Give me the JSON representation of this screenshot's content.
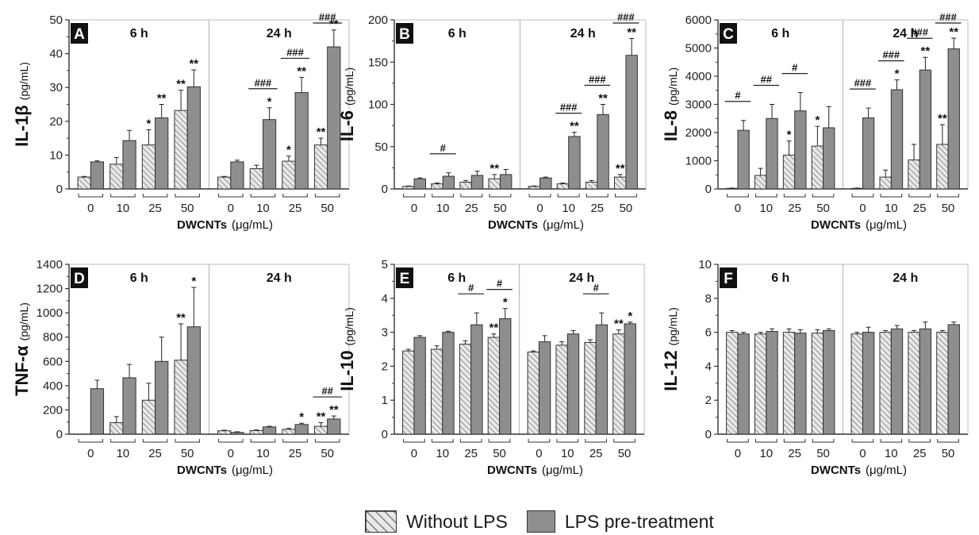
{
  "chart_data": [
    {
      "type": "bar",
      "panel_label": "A",
      "ylabel": "IL-1β",
      "yunit": "(pg/mL)",
      "xlabel": "DWCNTs",
      "xunit": "(μg/mL)",
      "ylim": [
        0,
        50
      ],
      "yticks": [
        0,
        10,
        20,
        30,
        40,
        50
      ],
      "groups": [
        {
          "name": "6 h",
          "categories": [
            "0",
            "10",
            "25",
            "50"
          ],
          "without": [
            {
              "v": 3.5,
              "e": 0.2,
              "s": ""
            },
            {
              "v": 7.3,
              "e": 2,
              "s": ""
            },
            {
              "v": 13,
              "e": 4.5,
              "s": "*"
            },
            {
              "v": 23.2,
              "e": 6,
              "s": "**"
            }
          ],
          "lps": [
            {
              "v": 8,
              "e": 0.3,
              "s": ""
            },
            {
              "v": 14.3,
              "e": 3,
              "s": ""
            },
            {
              "v": 21,
              "e": 4,
              "s": "**"
            },
            {
              "v": 30.2,
              "e": 5,
              "s": "**"
            }
          ]
        },
        {
          "name": "24 h",
          "categories": [
            "0",
            "10",
            "25",
            "50"
          ],
          "without": [
            {
              "v": 3.5,
              "e": 0.2,
              "s": ""
            },
            {
              "v": 6,
              "e": 1,
              "s": ""
            },
            {
              "v": 8.2,
              "e": 1.5,
              "s": "*"
            },
            {
              "v": 13,
              "e": 2,
              "s": "**"
            }
          ],
          "lps": [
            {
              "v": 8,
              "e": 0.5,
              "s": ""
            },
            {
              "v": 20.5,
              "e": 3.5,
              "s": "*"
            },
            {
              "v": 28.5,
              "e": 4.5,
              "s": "**"
            },
            {
              "v": 42,
              "e": 5,
              "s": "**"
            }
          ]
        }
      ],
      "brackets": [
        {
          "g": 1,
          "c": 1,
          "label": "###"
        },
        {
          "g": 1,
          "c": 2,
          "label": "###"
        },
        {
          "g": 1,
          "c": 3,
          "label": "###"
        }
      ]
    },
    {
      "type": "bar",
      "panel_label": "B",
      "ylabel": "IL-6",
      "yunit": "(pg/mL)",
      "xlabel": "DWCNTs",
      "xunit": "(μg/mL)",
      "ylim": [
        0,
        200
      ],
      "yticks": [
        0,
        50,
        100,
        150,
        200
      ],
      "groups": [
        {
          "name": "6 h",
          "categories": [
            "0",
            "10",
            "25",
            "50"
          ],
          "without": [
            {
              "v": 3,
              "e": 0.5,
              "s": ""
            },
            {
              "v": 6,
              "e": 1,
              "s": ""
            },
            {
              "v": 8,
              "e": 2,
              "s": ""
            },
            {
              "v": 12,
              "e": 5,
              "s": "**"
            }
          ],
          "lps": [
            {
              "v": 12,
              "e": 1,
              "s": ""
            },
            {
              "v": 15,
              "e": 4,
              "s": ""
            },
            {
              "v": 16,
              "e": 5,
              "s": ""
            },
            {
              "v": 17,
              "e": 6,
              "s": ""
            }
          ]
        },
        {
          "name": "24 h",
          "categories": [
            "0",
            "10",
            "25",
            "50"
          ],
          "without": [
            {
              "v": 3,
              "e": 0.5,
              "s": ""
            },
            {
              "v": 6,
              "e": 1,
              "s": ""
            },
            {
              "v": 8,
              "e": 2,
              "s": ""
            },
            {
              "v": 14,
              "e": 3,
              "s": "**"
            }
          ],
          "lps": [
            {
              "v": 13,
              "e": 1,
              "s": ""
            },
            {
              "v": 62,
              "e": 5,
              "s": "**"
            },
            {
              "v": 88,
              "e": 12,
              "s": "**"
            },
            {
              "v": 158,
              "e": 20,
              "s": "**"
            }
          ]
        }
      ],
      "brackets": [
        {
          "g": 0,
          "c": 1,
          "label": "#"
        },
        {
          "g": 1,
          "c": 1,
          "label": "###"
        },
        {
          "g": 1,
          "c": 2,
          "label": "###"
        },
        {
          "g": 1,
          "c": 3,
          "label": "###"
        }
      ]
    },
    {
      "type": "bar",
      "panel_label": "C",
      "ylabel": "IL-8",
      "yunit": "(pg/mL)",
      "xlabel": "DWCNTs",
      "xunit": "(μg/mL)",
      "ylim": [
        0,
        6000
      ],
      "yticks": [
        0,
        1000,
        2000,
        3000,
        4000,
        5000,
        6000
      ],
      "groups": [
        {
          "name": "6 h",
          "categories": [
            "0",
            "10",
            "25",
            "50"
          ],
          "without": [
            {
              "v": 20,
              "e": 10,
              "s": ""
            },
            {
              "v": 480,
              "e": 250,
              "s": ""
            },
            {
              "v": 1200,
              "e": 500,
              "s": "*"
            },
            {
              "v": 1520,
              "e": 700,
              "s": "*"
            }
          ],
          "lps": [
            {
              "v": 2080,
              "e": 350,
              "s": ""
            },
            {
              "v": 2500,
              "e": 500,
              "s": ""
            },
            {
              "v": 2770,
              "e": 650,
              "s": ""
            },
            {
              "v": 2170,
              "e": 750,
              "s": ""
            }
          ]
        },
        {
          "name": "24 h",
          "categories": [
            "0",
            "10",
            "25",
            "50"
          ],
          "without": [
            {
              "v": 20,
              "e": 10,
              "s": ""
            },
            {
              "v": 420,
              "e": 250,
              "s": ""
            },
            {
              "v": 1030,
              "e": 550,
              "s": ""
            },
            {
              "v": 1580,
              "e": 700,
              "s": "**"
            }
          ],
          "lps": [
            {
              "v": 2520,
              "e": 350,
              "s": ""
            },
            {
              "v": 3520,
              "e": 350,
              "s": "*"
            },
            {
              "v": 4220,
              "e": 450,
              "s": "**"
            },
            {
              "v": 4970,
              "e": 380,
              "s": "**"
            }
          ]
        }
      ],
      "brackets": [
        {
          "g": 0,
          "c": 0,
          "label": "#"
        },
        {
          "g": 0,
          "c": 1,
          "label": "##"
        },
        {
          "g": 0,
          "c": 2,
          "label": "#"
        },
        {
          "g": 1,
          "c": 0,
          "label": "###"
        },
        {
          "g": 1,
          "c": 1,
          "label": "###"
        },
        {
          "g": 1,
          "c": 2,
          "label": "###"
        },
        {
          "g": 1,
          "c": 3,
          "label": "###"
        }
      ]
    },
    {
      "type": "bar",
      "panel_label": "D",
      "ylabel": "TNF-α",
      "yunit": "(pg/mL)",
      "xlabel": "DWCNTs",
      "xunit": "(μg/mL)",
      "ylim": [
        0,
        1400
      ],
      "yticks": [
        0,
        200,
        400,
        600,
        800,
        1000,
        1200,
        1400
      ],
      "groups": [
        {
          "name": "6 h",
          "categories": [
            "0",
            "10",
            "25",
            "50"
          ],
          "without": [
            {
              "v": 0,
              "e": 0,
              "s": ""
            },
            {
              "v": 95,
              "e": 50,
              "s": ""
            },
            {
              "v": 280,
              "e": 140,
              "s": ""
            },
            {
              "v": 610,
              "e": 300,
              "s": "**"
            }
          ],
          "lps": [
            {
              "v": 375,
              "e": 70,
              "s": ""
            },
            {
              "v": 465,
              "e": 110,
              "s": ""
            },
            {
              "v": 600,
              "e": 200,
              "s": ""
            },
            {
              "v": 885,
              "e": 325,
              "s": "*"
            }
          ]
        },
        {
          "name": "24 h",
          "categories": [
            "0",
            "10",
            "25",
            "50"
          ],
          "without": [
            {
              "v": 28,
              "e": 5,
              "s": ""
            },
            {
              "v": 30,
              "e": 5,
              "s": ""
            },
            {
              "v": 40,
              "e": 8,
              "s": ""
            },
            {
              "v": 65,
              "e": 30,
              "s": "**"
            }
          ],
          "lps": [
            {
              "v": 15,
              "e": 5,
              "s": ""
            },
            {
              "v": 60,
              "e": 5,
              "s": ""
            },
            {
              "v": 80,
              "e": 10,
              "s": "*"
            },
            {
              "v": 125,
              "e": 25,
              "s": "**"
            }
          ]
        }
      ],
      "brackets": [
        {
          "g": 1,
          "c": 3,
          "label": "##"
        }
      ]
    },
    {
      "type": "bar",
      "panel_label": "E",
      "ylabel": "IL-10",
      "yunit": "(pg/mL)",
      "xlabel": "DWCNTs",
      "xunit": "(μg/mL)",
      "ylim": [
        0,
        5
      ],
      "yticks": [
        0,
        1,
        2,
        3,
        4,
        5
      ],
      "groups": [
        {
          "name": "6 h",
          "categories": [
            "0",
            "10",
            "25",
            "50"
          ],
          "without": [
            {
              "v": 2.45,
              "e": 0.05,
              "s": ""
            },
            {
              "v": 2.5,
              "e": 0.1,
              "s": ""
            },
            {
              "v": 2.65,
              "e": 0.1,
              "s": ""
            },
            {
              "v": 2.85,
              "e": 0.1,
              "s": "**"
            }
          ],
          "lps": [
            {
              "v": 2.85,
              "e": 0.05,
              "s": ""
            },
            {
              "v": 3,
              "e": 0.03,
              "s": ""
            },
            {
              "v": 3.22,
              "e": 0.35,
              "s": ""
            },
            {
              "v": 3.4,
              "e": 0.3,
              "s": "*"
            }
          ]
        },
        {
          "name": "24 h",
          "categories": [
            "0",
            "10",
            "25",
            "50"
          ],
          "without": [
            {
              "v": 2.42,
              "e": 0.03,
              "s": ""
            },
            {
              "v": 2.62,
              "e": 0.1,
              "s": ""
            },
            {
              "v": 2.7,
              "e": 0.08,
              "s": ""
            },
            {
              "v": 2.95,
              "e": 0.12,
              "s": "**"
            }
          ],
          "lps": [
            {
              "v": 2.72,
              "e": 0.18,
              "s": ""
            },
            {
              "v": 2.95,
              "e": 0.1,
              "s": ""
            },
            {
              "v": 3.22,
              "e": 0.35,
              "s": ""
            },
            {
              "v": 3.25,
              "e": 0.05,
              "s": "*"
            }
          ]
        }
      ],
      "brackets": [
        {
          "g": 0,
          "c": 2,
          "label": "#"
        },
        {
          "g": 0,
          "c": 3,
          "label": "#"
        },
        {
          "g": 1,
          "c": 2,
          "label": "#"
        }
      ]
    },
    {
      "type": "bar",
      "panel_label": "F",
      "ylabel": "IL-12",
      "yunit": "(pg/mL)",
      "xlabel": "DWCNTs",
      "xunit": "(μg/mL)",
      "ylim": [
        0,
        10
      ],
      "yticks": [
        0,
        2,
        4,
        6,
        8,
        10
      ],
      "groups": [
        {
          "name": "6 h",
          "categories": [
            "0",
            "10",
            "25",
            "50"
          ],
          "without": [
            {
              "v": 6,
              "e": 0.1,
              "s": ""
            },
            {
              "v": 5.9,
              "e": 0.1,
              "s": ""
            },
            {
              "v": 6,
              "e": 0.2,
              "s": ""
            },
            {
              "v": 5.95,
              "e": 0.2,
              "s": ""
            }
          ],
          "lps": [
            {
              "v": 5.9,
              "e": 0.1,
              "s": ""
            },
            {
              "v": 6.05,
              "e": 0.15,
              "s": ""
            },
            {
              "v": 5.95,
              "e": 0.2,
              "s": ""
            },
            {
              "v": 6.1,
              "e": 0.1,
              "s": ""
            }
          ]
        },
        {
          "name": "24 h",
          "categories": [
            "0",
            "10",
            "25",
            "50"
          ],
          "without": [
            {
              "v": 5.9,
              "e": 0.1,
              "s": ""
            },
            {
              "v": 6,
              "e": 0.1,
              "s": ""
            },
            {
              "v": 6,
              "e": 0.1,
              "s": ""
            },
            {
              "v": 6,
              "e": 0.1,
              "s": ""
            }
          ],
          "lps": [
            {
              "v": 6,
              "e": 0.3,
              "s": ""
            },
            {
              "v": 6.2,
              "e": 0.2,
              "s": ""
            },
            {
              "v": 6.2,
              "e": 0.4,
              "s": ""
            },
            {
              "v": 6.45,
              "e": 0.15,
              "s": ""
            }
          ]
        }
      ],
      "brackets": []
    }
  ],
  "legend": {
    "without_lps": "Without LPS",
    "lps_pretreatment": "LPS pre-treatment"
  },
  "colors": {
    "lps_bar": "#8e8e8e",
    "hatch_bg": "#e8e8e8",
    "hatch_line": "#7a7a7a",
    "axis": "#333333",
    "divider": "#c9a9a9",
    "panel_label_bg": "#111111"
  }
}
